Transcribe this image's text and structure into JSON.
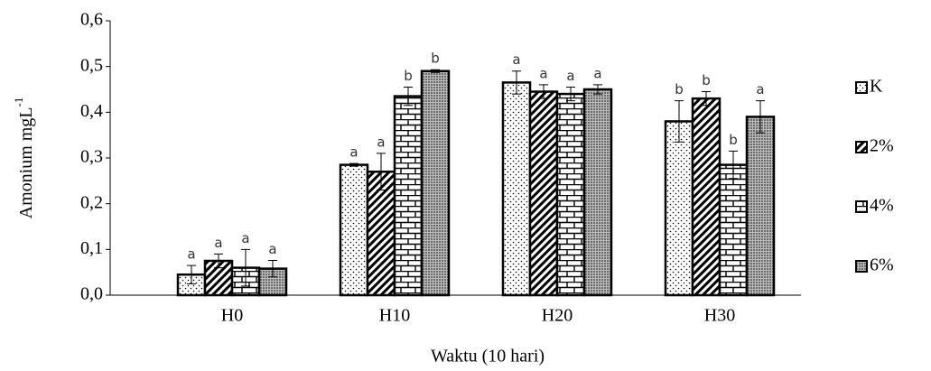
{
  "chart_data": {
    "type": "bar",
    "xlabel": "Waktu (10 hari)",
    "ylabel": "Amonium mgL",
    "ylabel_sup": "-1",
    "categories": [
      "H0",
      "H10",
      "H20",
      "H30"
    ],
    "series": [
      {
        "name": "K",
        "color": "#ffffff",
        "pattern": "dots",
        "values": [
          0.045,
          0.285,
          0.465,
          0.38
        ],
        "errors": [
          0.02,
          0.003,
          0.025,
          0.045
        ],
        "labels": [
          "a",
          "a",
          "a",
          "b"
        ]
      },
      {
        "name": "2%",
        "color": "#ffffff",
        "pattern": "diagonal",
        "values": [
          0.075,
          0.27,
          0.445,
          0.43
        ],
        "errors": [
          0.015,
          0.04,
          0.015,
          0.015
        ],
        "labels": [
          "a",
          "a",
          "a",
          "b"
        ]
      },
      {
        "name": "4%",
        "color": "#ffffff",
        "pattern": "brick",
        "values": [
          0.06,
          0.435,
          0.44,
          0.285
        ],
        "errors": [
          0.04,
          0.02,
          0.015,
          0.03
        ],
        "labels": [
          "a",
          "b",
          "a",
          "b"
        ]
      },
      {
        "name": "6%",
        "color": "#ffffff",
        "pattern": "dense",
        "values": [
          0.058,
          0.49,
          0.45,
          0.39
        ],
        "errors": [
          0.018,
          0.003,
          0.01,
          0.035
        ],
        "labels": [
          "a",
          "b",
          "a",
          "a"
        ]
      }
    ],
    "ylim": [
      0,
      0.6
    ],
    "yticks": [
      {
        "value": 0,
        "label": "0,0"
      },
      {
        "value": 0.1,
        "label": "0,1"
      },
      {
        "value": 0.2,
        "label": "0,2"
      },
      {
        "value": 0.3,
        "label": "0,3"
      },
      {
        "value": 0.4,
        "label": "0,4"
      },
      {
        "value": 0.5,
        "label": "0,5"
      },
      {
        "value": 0.6,
        "label": "0,6"
      }
    ],
    "legend": "right"
  }
}
